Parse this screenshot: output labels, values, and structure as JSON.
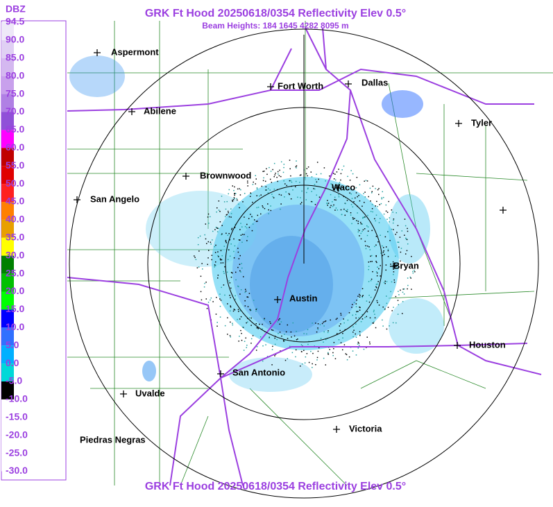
{
  "header": {
    "title": "GRK Ft Hood 20250618/0354 Reflectivity Elev 0.5°",
    "subtitle": "Beam Heights: 184 1645 4282 8095 m"
  },
  "legend": {
    "unit": "DBZ",
    "labels": [
      "94.5",
      "90.0",
      "85.0",
      "80.0",
      "75.0",
      "70.0",
      "65.0",
      "60.0",
      "55.0",
      "50.0",
      "45.0",
      "40.0",
      "35.0",
      "30.0",
      "25.0",
      "20.0",
      "15.0",
      "10.0",
      "5.0",
      "0.0",
      "-5.0",
      "-10.0",
      "-15.0",
      "-20.0",
      "-25.0",
      "-30.0"
    ]
  },
  "cities": [
    "Aspermont",
    "Fort Worth",
    "Dallas",
    "Abilene",
    "Tyler",
    "Brownwood",
    "Waco",
    "San Angelo",
    "Bryan",
    "Austin",
    "Houston",
    "San Antonio",
    "Uvalde",
    "Victoria",
    "Piedras Negras"
  ],
  "footer": {
    "title": "GRK Ft Hood 20250618/0354 Reflectivity Elev 0.5°"
  }
}
